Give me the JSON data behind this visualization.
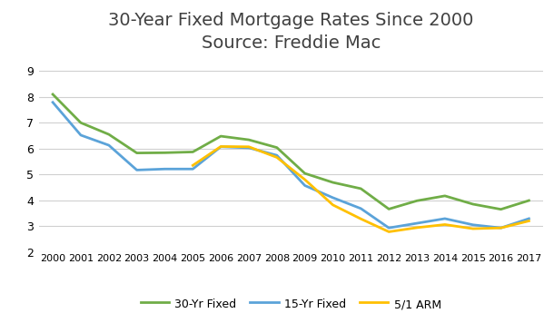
{
  "title": "30-Year Fixed Mortgage Rates Since 2000\nSource: Freddie Mac",
  "years": [
    2000,
    2001,
    2002,
    2003,
    2004,
    2005,
    2006,
    2007,
    2008,
    2009,
    2010,
    2011,
    2012,
    2013,
    2014,
    2015,
    2016,
    2017
  ],
  "fixed30": [
    8.1,
    7.0,
    6.55,
    5.83,
    5.84,
    5.87,
    6.48,
    6.34,
    6.04,
    5.04,
    4.69,
    4.45,
    3.66,
    3.98,
    4.17,
    3.85,
    3.65,
    3.99
  ],
  "fixed15": [
    7.79,
    6.52,
    6.13,
    5.17,
    5.21,
    5.21,
    6.07,
    6.03,
    5.74,
    4.57,
    4.1,
    3.68,
    2.93,
    3.11,
    3.29,
    3.05,
    2.93,
    3.29
  ],
  "arm51": [
    null,
    null,
    null,
    null,
    null,
    5.35,
    6.08,
    6.07,
    5.66,
    4.8,
    3.82,
    3.28,
    2.78,
    2.94,
    3.06,
    2.9,
    2.93,
    3.2
  ],
  "color_30fixed": "#70AD47",
  "color_15fixed": "#5BA3D9",
  "color_arm": "#FFC000",
  "ylim": [
    2,
    9.5
  ],
  "yticks": [
    2,
    3,
    4,
    5,
    6,
    7,
    8,
    9
  ],
  "background_color": "#ffffff",
  "grid_color": "#d0d0d0",
  "title_fontsize": 14,
  "legend_labels": [
    "30-Yr Fixed",
    "15-Yr Fixed",
    "5/1 ARM"
  ],
  "linewidth": 2.0
}
